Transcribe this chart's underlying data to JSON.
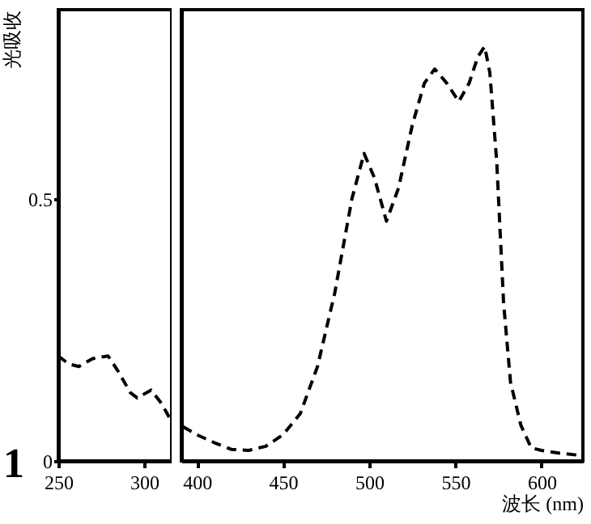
{
  "chart_data": [
    {
      "type": "line",
      "ylabel": "光吸收",
      "annotations": [
        "1"
      ],
      "x": [
        250,
        256,
        262,
        270,
        279,
        285,
        292,
        296,
        304,
        310,
        316
      ],
      "series": [
        {
          "color": "#000000",
          "values": [
            0.2,
            0.185,
            0.18,
            0.195,
            0.2,
            0.17,
            0.13,
            0.12,
            0.135,
            0.11,
            0.075
          ]
        }
      ],
      "xlim": [
        250,
        316
      ],
      "xticks": [
        250,
        300
      ],
      "ylim": [
        0,
        0.86
      ],
      "yticks": [
        0,
        0.5
      ],
      "grid": false,
      "marker": "none",
      "line_style": "dashed"
    },
    {
      "type": "line",
      "xlabel": "波长 (nm)",
      "x": [
        392,
        400,
        410,
        420,
        430,
        440,
        450,
        460,
        470,
        480,
        490,
        497,
        503,
        510,
        517,
        525,
        532,
        538,
        545,
        552,
        558,
        563,
        567,
        570,
        574,
        578,
        582,
        588,
        594,
        600,
        610,
        624
      ],
      "series": [
        {
          "color": "#000000",
          "values": [
            0.065,
            0.05,
            0.035,
            0.022,
            0.02,
            0.028,
            0.05,
            0.09,
            0.18,
            0.32,
            0.5,
            0.586,
            0.54,
            0.457,
            0.52,
            0.64,
            0.72,
            0.747,
            0.72,
            0.685,
            0.72,
            0.77,
            0.79,
            0.74,
            0.57,
            0.3,
            0.15,
            0.068,
            0.025,
            0.02,
            0.015,
            0.01
          ]
        }
      ],
      "xlim": [
        391,
        624
      ],
      "xticks": [
        400,
        450,
        500,
        550,
        600
      ],
      "ylim": [
        0,
        0.86
      ],
      "tick_labels": "x",
      "grid": false,
      "marker": "none",
      "line_style": "dashed"
    }
  ]
}
